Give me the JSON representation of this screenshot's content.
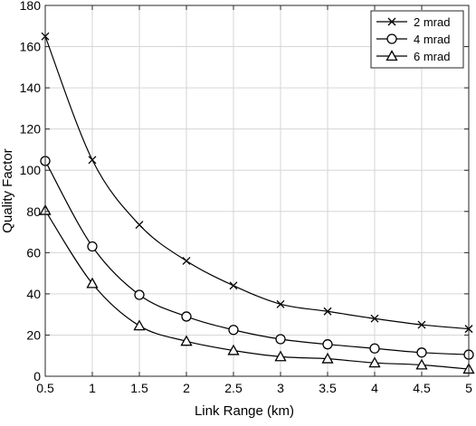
{
  "chart_data": {
    "type": "line",
    "title": "",
    "xlabel": "Link Range (km)",
    "ylabel": "Quality Factor",
    "x": [
      0.5,
      1,
      1.5,
      2,
      2.5,
      3,
      3.5,
      4,
      4.5,
      5
    ],
    "xlim": [
      0.5,
      5
    ],
    "ylim": [
      0,
      180
    ],
    "xticks": [
      0.5,
      1,
      1.5,
      2,
      2.5,
      3,
      3.5,
      4,
      4.5,
      5
    ],
    "xtick_labels": [
      "0.5",
      "1",
      "1.5",
      "2",
      "2.5",
      "3",
      "3.5",
      "4",
      "4.5",
      "5"
    ],
    "yticks": [
      0,
      20,
      40,
      60,
      80,
      100,
      120,
      140,
      160,
      180
    ],
    "ytick_labels": [
      "0",
      "20",
      "40",
      "60",
      "80",
      "100",
      "120",
      "140",
      "160",
      "180"
    ],
    "grid": true,
    "legend_position": "top-right",
    "series": [
      {
        "name": "2 mrad",
        "marker": "x",
        "color": "#000000",
        "values": [
          165,
          105,
          73.5,
          56,
          44,
          35,
          31.5,
          28,
          25,
          23
        ]
      },
      {
        "name": "4 mrad",
        "marker": "circle",
        "color": "#000000",
        "values": [
          104.5,
          63,
          39.5,
          29,
          22.5,
          18,
          15.5,
          13.5,
          11.5,
          10.5
        ]
      },
      {
        "name": "6 mrad",
        "marker": "triangle",
        "color": "#000000",
        "values": [
          80.5,
          45,
          24.5,
          17,
          12.5,
          9.5,
          8.5,
          6.5,
          5.5,
          3.5
        ]
      }
    ]
  },
  "colors": {
    "grid": "#d6d6d6",
    "axis": "#262626",
    "line": "#000000",
    "background": "#ffffff"
  }
}
